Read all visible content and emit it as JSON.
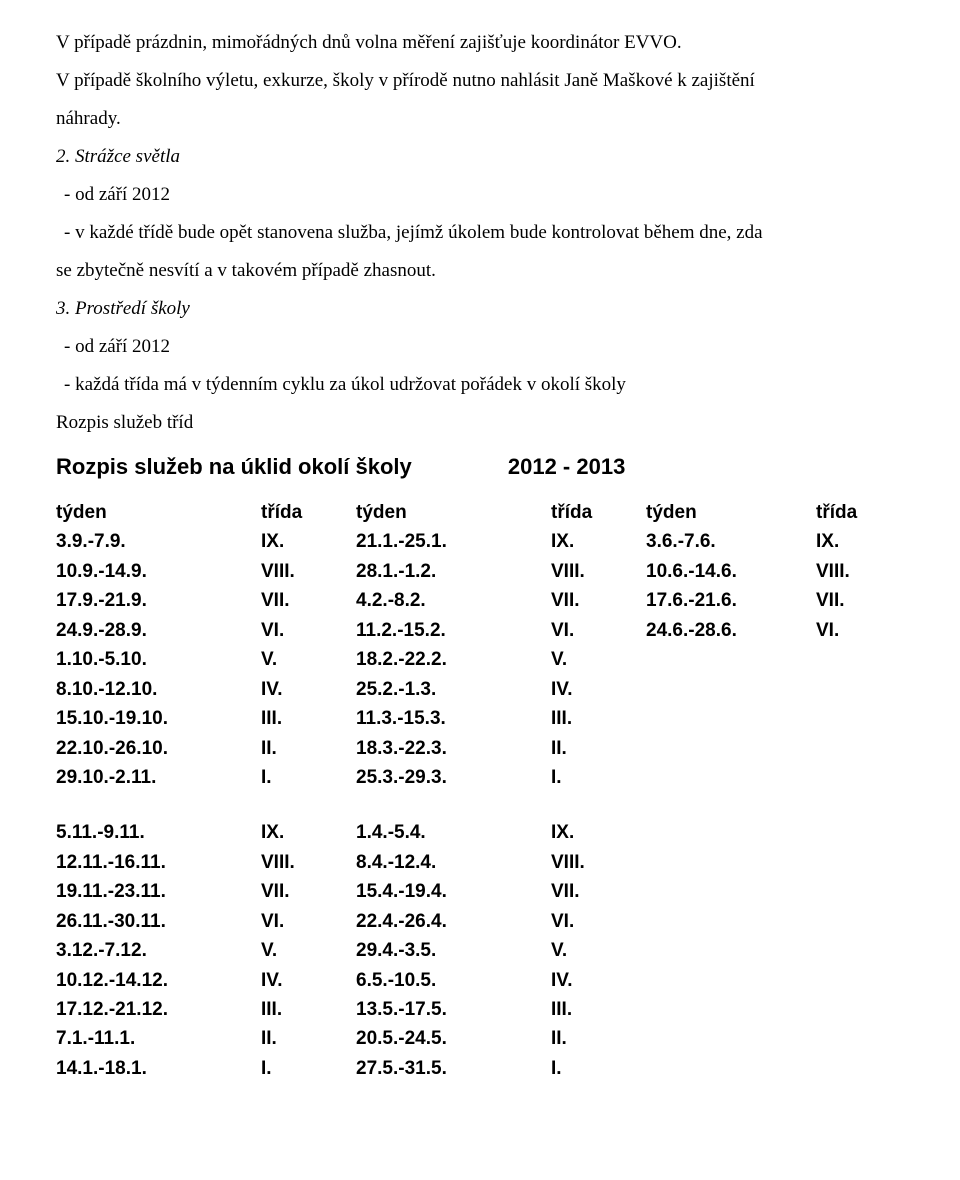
{
  "text": {
    "p1a": "V případě prázdnin, mimořádných dnů volna měření zajišťuje koordinátor EVVO.",
    "p1b": "V případě školního výletu, exkurze, školy v přírodě nutno nahlásit Janě Maškové k zajištění",
    "p1c": "náhrady.",
    "h2": "2. Strážce světla",
    "p2a": "- od září 2012",
    "p2b": "- v každé třídě bude opět  stanovena služba, jejímž úkolem bude kontrolovat během dne, zda",
    "p2c": "se zbytečně nesvítí a v takovém případě zhasnout.",
    "h3": "3. Prostředí školy",
    "p3a": "- od září 2012",
    "p3b": "- každá třída má v týdenním cyklu za úkol udržovat pořádek v okolí školy",
    "p3c": "Rozpis služeb tříd",
    "rozpis": "Rozpis služeb na úklid okolí školy",
    "year": "2012 - 2013"
  },
  "header": {
    "tyden": "týden",
    "trida": "třída"
  },
  "block1": {
    "c1d": [
      "3.9.-7.9.",
      "10.9.-14.9.",
      "17.9.-21.9.",
      "24.9.-28.9.",
      "1.10.-5.10.",
      "8.10.-12.10.",
      "15.10.-19.10.",
      "22.10.-26.10.",
      "29.10.-2.11."
    ],
    "c1c": [
      "IX.",
      "VIII.",
      "VII.",
      "VI.",
      "V.",
      "IV.",
      "III.",
      "II.",
      "I."
    ],
    "c2d": [
      "21.1.-25.1.",
      "28.1.-1.2.",
      "4.2.-8.2.",
      "11.2.-15.2.",
      "18.2.-22.2.",
      "25.2.-1.3.",
      "11.3.-15.3.",
      "18.3.-22.3.",
      "25.3.-29.3."
    ],
    "c2c": [
      "IX.",
      "VIII.",
      "VII.",
      "VI.",
      "V.",
      "IV.",
      "III.",
      "II.",
      "I."
    ],
    "c3d": [
      "3.6.-7.6.",
      "10.6.-14.6.",
      "17.6.-21.6.",
      "24.6.-28.6."
    ],
    "c3c": [
      "IX.",
      "VIII.",
      "VII.",
      "VI."
    ]
  },
  "block2": {
    "c1d": [
      "5.11.-9.11.",
      "12.11.-16.11.",
      "19.11.-23.11.",
      "26.11.-30.11.",
      "3.12.-7.12.",
      "10.12.-14.12.",
      "17.12.-21.12.",
      "7.1.-11.1.",
      "14.1.-18.1."
    ],
    "c1c": [
      "IX.",
      "VIII.",
      "VII.",
      "VI.",
      "V.",
      "IV.",
      "III.",
      "II.",
      "I."
    ],
    "c2d": [
      "1.4.-5.4.",
      "8.4.-12.4.",
      "15.4.-19.4.",
      "22.4.-26.4.",
      "29.4.-3.5.",
      "6.5.-10.5.",
      "13.5.-17.5.",
      "20.5.-24.5.",
      "27.5.-31.5."
    ],
    "c2c": [
      "IX.",
      "VIII.",
      "VII.",
      "VI.",
      "V.",
      "IV.",
      "III.",
      "II.",
      "I."
    ]
  }
}
